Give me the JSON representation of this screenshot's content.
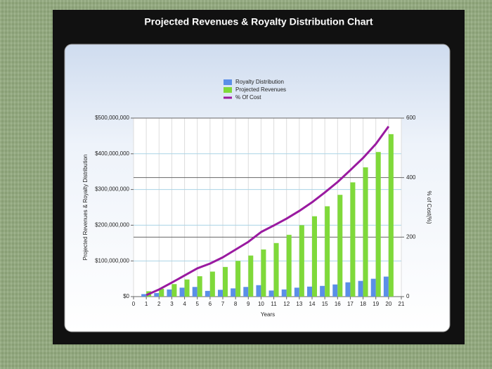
{
  "chart_data": {
    "type": "bar",
    "title": "Projected Revenues & Royalty Distribution Chart",
    "x_label": "Years",
    "y_label": "Projected Revenues & Royalty Distribution",
    "y2_label": "% of Cost(%)",
    "x": [
      1,
      2,
      3,
      4,
      5,
      6,
      7,
      8,
      9,
      10,
      11,
      12,
      13,
      14,
      15,
      16,
      17,
      18,
      19,
      20
    ],
    "xlim": [
      0,
      21
    ],
    "xticks": [
      0,
      1,
      2,
      3,
      4,
      5,
      6,
      7,
      8,
      9,
      10,
      11,
      12,
      13,
      14,
      15,
      16,
      17,
      18,
      19,
      20,
      21
    ],
    "ylim": [
      0,
      500000000
    ],
    "yticks": [
      {
        "value": 0,
        "label": "$0"
      },
      {
        "value": 100000000,
        "label": "$100,000,000"
      },
      {
        "value": 200000000,
        "label": "$200,000,000"
      },
      {
        "value": 300000000,
        "label": "$300,000,000"
      },
      {
        "value": 400000000,
        "label": "$400,000,000"
      },
      {
        "value": 500000000,
        "label": "$500,000,000"
      }
    ],
    "y2lim": [
      0,
      600
    ],
    "y2ticks": [
      0,
      200,
      400,
      600
    ],
    "grid": true,
    "legend": "top",
    "series": [
      {
        "name": "Royalty Distribution",
        "type": "bar",
        "color": "#5b8fe8",
        "values": [
          7000000,
          10000000,
          20000000,
          25000000,
          27000000,
          16000000,
          19000000,
          23000000,
          27000000,
          32000000,
          17000000,
          20000000,
          25000000,
          28000000,
          30000000,
          34000000,
          40000000,
          44000000,
          50000000,
          56000000
        ]
      },
      {
        "name": "Projected Revenues",
        "type": "bar",
        "color": "#7fd93a",
        "values": [
          15000000,
          22000000,
          35000000,
          48000000,
          57000000,
          70000000,
          83000000,
          100000000,
          115000000,
          132000000,
          150000000,
          173000000,
          200000000,
          225000000,
          253000000,
          285000000,
          320000000,
          362000000,
          405000000,
          455000000
        ]
      },
      {
        "name": "% Of Cost",
        "type": "line",
        "axis": "y2",
        "color": "#9a1aa0",
        "values": [
          5,
          24,
          47,
          71,
          95,
          111,
          132,
          158,
          184,
          217,
          239,
          262,
          288,
          317,
          350,
          385,
          425,
          466,
          513,
          572
        ]
      }
    ]
  }
}
